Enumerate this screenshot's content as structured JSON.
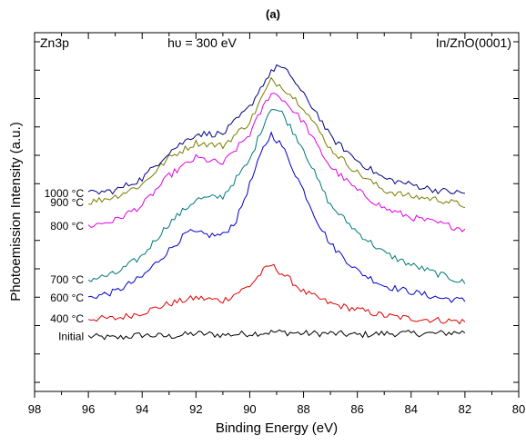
{
  "chart_data": {
    "type": "line",
    "title": "(a)",
    "annotations": {
      "left": "Zn3p",
      "center": "hυ = 300 eV",
      "right": "In/ZnO(0001)"
    },
    "xlabel": "Binding Energy (eV)",
    "ylabel": "Photoemission Intensity (a.u.)",
    "xlim": [
      98,
      80
    ],
    "x_reversed": true,
    "xticks": [
      "98",
      "96",
      "94",
      "92",
      "90",
      "88",
      "86",
      "84",
      "82",
      "80"
    ],
    "ylim": [
      0,
      1
    ],
    "ytick_labels_shown": false,
    "grid": false,
    "legend": "labels at left of each trace",
    "series": [
      {
        "name": "Initial",
        "color": "#000000",
        "x": [
          96,
          95,
          94,
          93,
          92,
          91,
          90,
          89,
          88,
          87,
          86,
          85,
          84,
          83,
          82
        ],
        "values": [
          0.09,
          0.085,
          0.095,
          0.09,
          0.1,
          0.095,
          0.1,
          0.105,
          0.1,
          0.1,
          0.095,
          0.1,
          0.1,
          0.1,
          0.105
        ]
      },
      {
        "name": "400 °C",
        "color": "#e00000",
        "x": [
          96,
          95,
          94,
          93,
          92,
          91,
          90,
          89.5,
          89.2,
          88.5,
          88,
          87,
          86,
          85,
          84,
          83,
          82
        ],
        "values": [
          0.15,
          0.15,
          0.17,
          0.2,
          0.22,
          0.21,
          0.26,
          0.31,
          0.33,
          0.28,
          0.24,
          0.2,
          0.18,
          0.16,
          0.15,
          0.145,
          0.14
        ]
      },
      {
        "name": "600 °C",
        "color": "#0000cc",
        "x": [
          96,
          95,
          94,
          93,
          92.3,
          91.5,
          91,
          90.5,
          90,
          89.5,
          89.2,
          88.8,
          88,
          87.5,
          87,
          86,
          85,
          84,
          83,
          82
        ],
        "values": [
          0.22,
          0.24,
          0.29,
          0.38,
          0.44,
          0.43,
          0.43,
          0.48,
          0.6,
          0.72,
          0.77,
          0.73,
          0.58,
          0.48,
          0.4,
          0.31,
          0.26,
          0.24,
          0.22,
          0.21
        ]
      },
      {
        "name": "700 °C",
        "color": "#007878",
        "x": [
          96,
          95,
          94,
          93,
          92,
          91,
          90,
          89.5,
          89.2,
          88.8,
          88,
          87.5,
          87,
          86,
          85,
          84,
          83,
          82
        ],
        "values": [
          0.28,
          0.3,
          0.36,
          0.47,
          0.55,
          0.56,
          0.68,
          0.8,
          0.86,
          0.84,
          0.72,
          0.62,
          0.53,
          0.44,
          0.37,
          0.33,
          0.3,
          0.27
        ]
      },
      {
        "name": "800 °C",
        "color": "#e000e0",
        "x": [
          96,
          95,
          94,
          93,
          92,
          91,
          90,
          89.5,
          89.2,
          88.8,
          88,
          87.5,
          87,
          86,
          85,
          84,
          83,
          82
        ],
        "values": [
          0.46,
          0.48,
          0.53,
          0.63,
          0.69,
          0.67,
          0.77,
          0.86,
          0.91,
          0.89,
          0.81,
          0.73,
          0.66,
          0.58,
          0.52,
          0.49,
          0.47,
          0.45
        ]
      },
      {
        "name": "900 °C",
        "color": "#7a7a00",
        "x": [
          96,
          95,
          94,
          93,
          92,
          91,
          90,
          89.5,
          89.2,
          88.8,
          88,
          87.5,
          87,
          86,
          85,
          84,
          83,
          82
        ],
        "values": [
          0.54,
          0.56,
          0.6,
          0.69,
          0.74,
          0.73,
          0.81,
          0.9,
          0.95,
          0.93,
          0.86,
          0.79,
          0.72,
          0.64,
          0.58,
          0.56,
          0.55,
          0.53
        ]
      },
      {
        "name": "1000 °C",
        "color": "#000080",
        "x": [
          96,
          95,
          94,
          93,
          92,
          91,
          90,
          89.5,
          89,
          88.5,
          88,
          87.5,
          87,
          86,
          85,
          84,
          83,
          82
        ],
        "values": [
          0.57,
          0.58,
          0.62,
          0.71,
          0.77,
          0.77,
          0.86,
          0.94,
          1.0,
          0.97,
          0.9,
          0.84,
          0.76,
          0.68,
          0.62,
          0.6,
          0.58,
          0.57
        ]
      }
    ]
  }
}
